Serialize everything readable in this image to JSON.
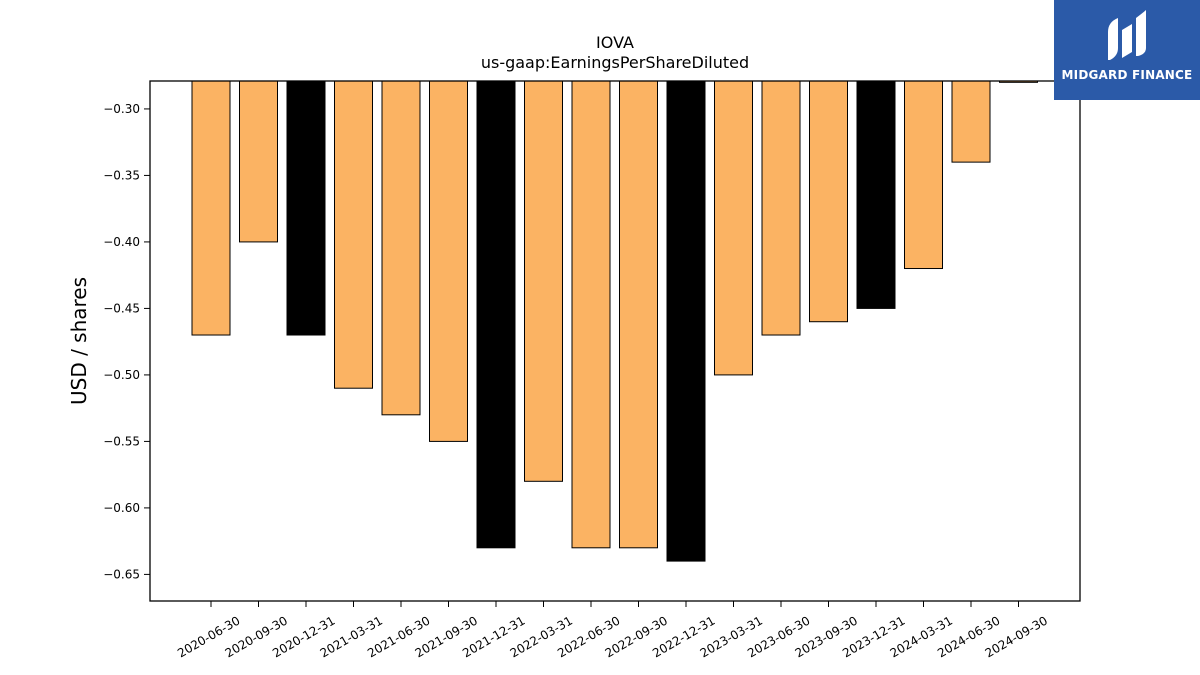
{
  "chart_data": {
    "type": "bar",
    "title": "IOVA",
    "subtitle": "us-gaap:EarningsPerShareDiluted",
    "ylabel": "USD / shares",
    "xlabel": "",
    "categories": [
      "2020-06-30",
      "2020-09-30",
      "2020-12-31",
      "2021-03-31",
      "2021-06-30",
      "2021-09-30",
      "2021-12-31",
      "2022-03-31",
      "2022-06-30",
      "2022-09-30",
      "2022-12-31",
      "2023-03-31",
      "2023-06-30",
      "2023-09-30",
      "2023-12-31",
      "2024-03-31",
      "2024-06-30",
      "2024-09-30"
    ],
    "values": [
      -0.47,
      -0.4,
      -0.47,
      -0.51,
      -0.53,
      -0.55,
      -0.63,
      -0.58,
      -0.63,
      -0.63,
      -0.64,
      -0.5,
      -0.47,
      -0.46,
      -0.45,
      -0.42,
      -0.34,
      -0.28
    ],
    "highlight": [
      false,
      false,
      true,
      false,
      false,
      false,
      true,
      false,
      false,
      false,
      true,
      false,
      false,
      false,
      true,
      false,
      false,
      false
    ],
    "bar_color": "#fbb363",
    "highlight_color": "#000000",
    "ylim": [
      -0.67,
      -0.279
    ],
    "yticks": [
      -0.3,
      -0.35,
      -0.4,
      -0.45,
      -0.5,
      -0.55,
      -0.6,
      -0.65
    ],
    "grid": false,
    "legend": "none"
  },
  "logo": {
    "name": "MIDGARD FINANCE",
    "icon": "midgard-logo-icon",
    "background": "#2b5aa8"
  }
}
